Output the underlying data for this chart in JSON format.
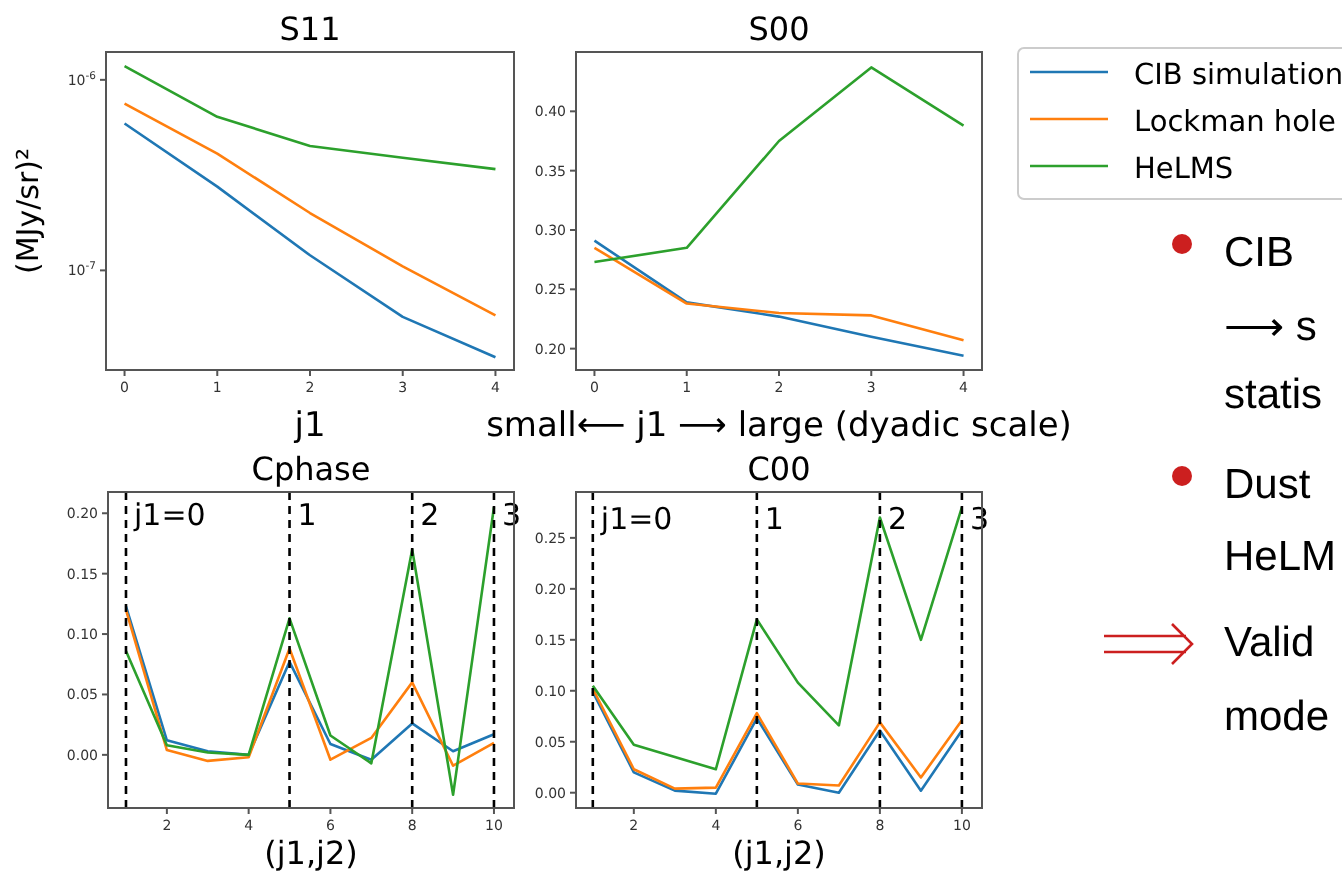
{
  "chart_data": [
    {
      "type": "line",
      "title": "S11",
      "xlabel": "j1",
      "ylabel": "(MJy/sr)²",
      "log": "y",
      "x": [
        0,
        1,
        2,
        3,
        4
      ],
      "xlim": [
        -0.2,
        4.2
      ],
      "xticks": [
        0,
        1,
        2,
        3,
        4
      ],
      "ylim": [
        3e-08,
        1.4e-06
      ],
      "yticks": [
        {
          "value": 1e-07,
          "label": "10$^{-7}$"
        },
        {
          "value": 1e-06,
          "label": "10$^{-6}$"
        }
      ],
      "series": [
        {
          "color": "#1f77b4",
          "values": [
            5.9e-07,
            2.75e-07,
            1.2e-07,
            5.7e-08,
            3.5e-08
          ]
        },
        {
          "color": "#ff7f0e",
          "values": [
            7.5e-07,
            4.1e-07,
            2e-07,
            1.05e-07,
            5.8e-08
          ]
        },
        {
          "color": "#2ca02c",
          "values": [
            1.18e-06,
            6.4e-07,
            4.5e-07,
            3.9e-07,
            3.4e-07
          ]
        }
      ]
    },
    {
      "type": "line",
      "title": "S00",
      "xlabel": "small⟵ j1 ⟶ large (dyadic scale)",
      "legend": "right",
      "x": [
        0,
        1,
        2,
        3,
        4
      ],
      "xlim": [
        -0.2,
        4.2
      ],
      "xticks": [
        0,
        1,
        2,
        3,
        4
      ],
      "ylim": [
        0.182,
        0.45
      ],
      "yticks": [
        {
          "value": 0.2,
          "label": "0.20"
        },
        {
          "value": 0.25,
          "label": "0.25"
        },
        {
          "value": 0.3,
          "label": "0.30"
        },
        {
          "value": 0.35,
          "label": "0.35"
        },
        {
          "value": 0.4,
          "label": "0.40"
        }
      ],
      "series": [
        {
          "name": "CIB simulation",
          "color": "#1f77b4",
          "values": [
            0.291,
            0.239,
            0.227,
            0.21,
            0.194
          ]
        },
        {
          "name": "Lockman hole",
          "color": "#ff7f0e",
          "values": [
            0.285,
            0.238,
            0.23,
            0.228,
            0.207
          ]
        },
        {
          "name": "HeLMS",
          "color": "#2ca02c",
          "values": [
            0.273,
            0.285,
            0.375,
            0.437,
            0.388
          ]
        }
      ]
    },
    {
      "type": "line",
      "title": "Cphase",
      "xlabel": "(j1,j2)",
      "x": [
        1,
        2,
        3,
        4,
        5,
        6,
        7,
        8,
        9,
        10
      ],
      "xlim": [
        0.56,
        10.49
      ],
      "xticks": [
        2,
        4,
        6,
        8,
        10
      ],
      "ylim": [
        -0.044,
        0.2176
      ],
      "yticks": [
        {
          "value": 0,
          "label": "0.00"
        },
        {
          "value": 0.05,
          "label": "0.05"
        },
        {
          "value": 0.1,
          "label": "0.10"
        },
        {
          "value": 0.15,
          "label": "0.15"
        },
        {
          "value": 0.2,
          "label": "0.20"
        }
      ],
      "ref_lines": [
        {
          "axis": "x",
          "value": 1,
          "line_style": "dashed",
          "color": "#000000"
        },
        {
          "axis": "x",
          "value": 5,
          "line_style": "dashed",
          "color": "#000000"
        },
        {
          "axis": "x",
          "value": 8,
          "line_style": "dashed",
          "color": "#000000"
        },
        {
          "axis": "x",
          "value": 10,
          "line_style": "dashed",
          "color": "#000000"
        }
      ],
      "annotations": [
        {
          "text": "j1=0",
          "x": 1,
          "y": 0.2
        },
        {
          "text": "1",
          "x": 5,
          "y": 0.2
        },
        {
          "text": "2",
          "x": 8,
          "y": 0.2
        },
        {
          "text": "3",
          "x": 10,
          "y": 0.2
        }
      ],
      "series": [
        {
          "color": "#1f77b4",
          "values": [
            0.123,
            0.012,
            0.003,
            0.0,
            0.077,
            0.009,
            -0.004,
            0.026,
            0.003,
            0.017
          ]
        },
        {
          "color": "#ff7f0e",
          "values": [
            0.12,
            0.004,
            -0.005,
            -0.002,
            0.088,
            -0.004,
            0.014,
            0.06,
            -0.009,
            0.01
          ]
        },
        {
          "color": "#2ca02c",
          "values": [
            0.086,
            0.008,
            0.002,
            0.0,
            0.113,
            0.016,
            -0.007,
            0.17,
            -0.033,
            0.205
          ]
        }
      ]
    },
    {
      "type": "line",
      "title": "C00",
      "xlabel": "(j1,j2)",
      "x": [
        1,
        2,
        3,
        4,
        5,
        6,
        7,
        8,
        9,
        10
      ],
      "xlim": [
        0.59,
        10.49
      ],
      "xticks": [
        2,
        4,
        6,
        8,
        10
      ],
      "ylim": [
        -0.015,
        0.295
      ],
      "yticks": [
        {
          "value": 0,
          "label": "0.00"
        },
        {
          "value": 0.05,
          "label": "0.05"
        },
        {
          "value": 0.1,
          "label": "0.10"
        },
        {
          "value": 0.15,
          "label": "0.15"
        },
        {
          "value": 0.2,
          "label": "0.20"
        },
        {
          "value": 0.25,
          "label": "0.25"
        }
      ],
      "ref_lines": [
        {
          "axis": "x",
          "value": 1,
          "line_style": "dashed",
          "color": "#000000"
        },
        {
          "axis": "x",
          "value": 5,
          "line_style": "dashed",
          "color": "#000000"
        },
        {
          "axis": "x",
          "value": 8,
          "line_style": "dashed",
          "color": "#000000"
        },
        {
          "axis": "x",
          "value": 10,
          "line_style": "dashed",
          "color": "#000000"
        }
      ],
      "annotations": [
        {
          "text": "j1=0",
          "x": 1,
          "y": 0.27
        },
        {
          "text": "1",
          "x": 5,
          "y": 0.27
        },
        {
          "text": "2",
          "x": 8,
          "y": 0.27
        },
        {
          "text": "3",
          "x": 10,
          "y": 0.27
        }
      ],
      "series": [
        {
          "color": "#1f77b4",
          "values": [
            0.099,
            0.02,
            0.002,
            -0.001,
            0.073,
            0.008,
            0.0,
            0.061,
            0.002,
            0.061
          ]
        },
        {
          "color": "#ff7f0e",
          "values": [
            0.102,
            0.023,
            0.004,
            0.005,
            0.078,
            0.009,
            0.007,
            0.069,
            0.015,
            0.071
          ]
        },
        {
          "color": "#2ca02c",
          "values": [
            0.105,
            0.047,
            0.035,
            0.023,
            0.17,
            0.108,
            0.066,
            0.27,
            0.15,
            0.28
          ]
        }
      ]
    },
    {
      "type": "other",
      "annotations": [
        "CIB",
        "⟶ s",
        "statis",
        "Dust",
        "HeLM",
        "Valid",
        "mode"
      ]
    }
  ]
}
